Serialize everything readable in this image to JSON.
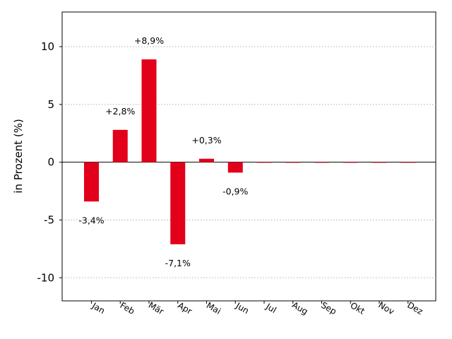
{
  "chart_data": {
    "type": "bar",
    "categories": [
      "Jan",
      "Feb",
      "Mär",
      "Apr",
      "Mai",
      "Jun",
      "Jul",
      "Aug",
      "Sep",
      "Okt",
      "Nov",
      "Dez"
    ],
    "values": [
      -3.4,
      2.8,
      8.9,
      -7.1,
      0.3,
      -0.9,
      0,
      0,
      0,
      0,
      0,
      0
    ],
    "data_labels": [
      "-3,4%",
      "+2,8%",
      "+8,9%",
      "-7,1%",
      "+0,3%",
      "-0,9%",
      "",
      "",
      "",
      "",
      "",
      ""
    ],
    "ylabel": "in Prozent (%)",
    "xlabel": "",
    "ylim": [
      -12,
      13
    ],
    "yticks": [
      10,
      5,
      0,
      -5,
      -10
    ],
    "ytick_labels": [
      "10",
      "5",
      "0",
      "-5",
      "-10"
    ],
    "bar_color": "#e2001a",
    "grid": "horizontal-dotted",
    "zero_line": true
  }
}
